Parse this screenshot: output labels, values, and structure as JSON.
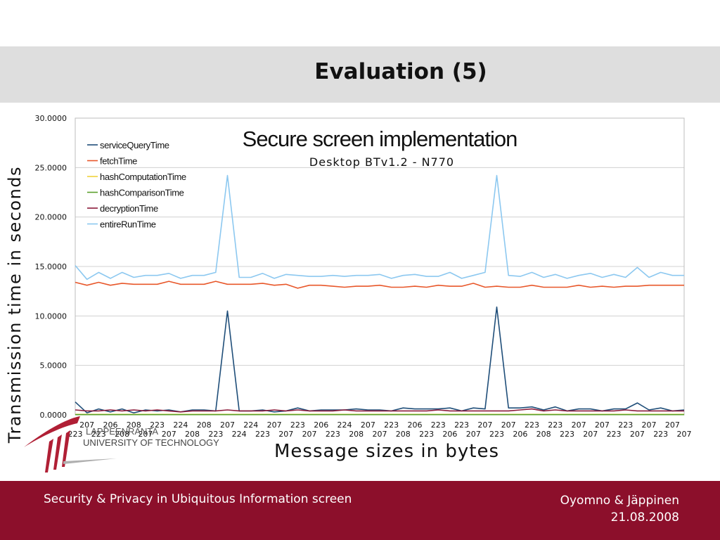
{
  "slide": {
    "title": "Evaluation (5)"
  },
  "footer": {
    "left": "Security & Privacy in Ubiquitous Information screen",
    "authors": "Oyomno & Jäppinen",
    "date": "21.08.2008"
  },
  "logo": {
    "line1": "LAPPEENRANTA",
    "line2": "UNIVERSITY OF TECHNOLOGY"
  },
  "chart_data": {
    "type": "line",
    "title": "Secure screen implementation",
    "subtitle": "Desktop BTv1.2 - N770",
    "xlabel": "Message sizes in bytes",
    "ylabel": "Transmission time in seconds",
    "ylim": [
      0,
      30
    ],
    "yticks": [
      "0.0000",
      "5.0000",
      "10.0000",
      "15.0000",
      "20.0000",
      "25.0000",
      "30.0000"
    ],
    "grid": true,
    "legend_position": "top-left",
    "x": [
      "223",
      "207",
      "223",
      "206",
      "208",
      "208",
      "207",
      "223",
      "207",
      "224",
      "208",
      "208",
      "223",
      "207",
      "224",
      "224",
      "223",
      "207",
      "207",
      "223",
      "207",
      "206",
      "223",
      "224",
      "208",
      "207",
      "207",
      "223",
      "208",
      "206",
      "223",
      "223",
      "206",
      "223",
      "207",
      "207",
      "223",
      "207",
      "206",
      "223",
      "208",
      "223",
      "223",
      "207",
      "207",
      "207",
      "223",
      "223",
      "207",
      "207",
      "223",
      "207",
      "207"
    ],
    "series": [
      {
        "name": "serviceQueryTime",
        "color": "#1f4e79",
        "values": [
          1.3,
          0.2,
          0.6,
          0.3,
          0.6,
          0.2,
          0.5,
          0.4,
          0.5,
          0.3,
          0.5,
          0.5,
          0.4,
          10.5,
          0.4,
          0.4,
          0.5,
          0.3,
          0.4,
          0.7,
          0.4,
          0.5,
          0.5,
          0.5,
          0.6,
          0.5,
          0.5,
          0.4,
          0.7,
          0.6,
          0.6,
          0.6,
          0.7,
          0.4,
          0.7,
          0.6,
          10.9,
          0.7,
          0.7,
          0.8,
          0.5,
          0.8,
          0.4,
          0.6,
          0.6,
          0.4,
          0.6,
          0.6,
          1.2,
          0.5,
          0.7,
          0.4,
          0.5
        ]
      },
      {
        "name": "fetchTime",
        "color": "#e8572a",
        "values": [
          13.4,
          13.1,
          13.4,
          13.1,
          13.3,
          13.2,
          13.2,
          13.2,
          13.5,
          13.2,
          13.2,
          13.2,
          13.5,
          13.2,
          13.2,
          13.2,
          13.3,
          13.1,
          13.2,
          12.8,
          13.1,
          13.1,
          13.0,
          12.9,
          13.0,
          13.0,
          13.1,
          12.9,
          12.9,
          13.0,
          12.9,
          13.1,
          13.0,
          13.0,
          13.3,
          12.9,
          13.0,
          12.9,
          12.9,
          13.1,
          12.9,
          12.9,
          12.9,
          13.1,
          12.9,
          13.0,
          12.9,
          13.0,
          13.0,
          13.1,
          13.1,
          13.1,
          13.1
        ]
      },
      {
        "name": "hashComputationTime",
        "color": "#f0d23c",
        "values": [
          0.05,
          0.05,
          0.05,
          0.05,
          0.05,
          0.05,
          0.05,
          0.05,
          0.05,
          0.05,
          0.05,
          0.05,
          0.05,
          0.05,
          0.05,
          0.05,
          0.05,
          0.05,
          0.05,
          0.05,
          0.05,
          0.05,
          0.05,
          0.05,
          0.05,
          0.05,
          0.05,
          0.05,
          0.05,
          0.05,
          0.05,
          0.05,
          0.05,
          0.05,
          0.05,
          0.05,
          0.05,
          0.05,
          0.05,
          0.05,
          0.05,
          0.05,
          0.05,
          0.05,
          0.05,
          0.05,
          0.05,
          0.05,
          0.05,
          0.05,
          0.05,
          0.05,
          0.05
        ]
      },
      {
        "name": "hashComparisonTime",
        "color": "#5aa02c",
        "values": [
          0.02,
          0.02,
          0.02,
          0.02,
          0.02,
          0.02,
          0.02,
          0.02,
          0.02,
          0.02,
          0.02,
          0.02,
          0.02,
          0.02,
          0.02,
          0.02,
          0.02,
          0.02,
          0.02,
          0.02,
          0.02,
          0.02,
          0.02,
          0.02,
          0.02,
          0.02,
          0.02,
          0.02,
          0.02,
          0.02,
          0.02,
          0.02,
          0.02,
          0.02,
          0.02,
          0.02,
          0.02,
          0.02,
          0.02,
          0.02,
          0.02,
          0.02,
          0.02,
          0.02,
          0.02,
          0.02,
          0.02,
          0.02,
          0.02,
          0.02,
          0.02,
          0.02,
          0.02
        ]
      },
      {
        "name": "decryptionTime",
        "color": "#8b1a3a",
        "values": [
          0.5,
          0.4,
          0.4,
          0.5,
          0.4,
          0.5,
          0.4,
          0.5,
          0.4,
          0.3,
          0.4,
          0.4,
          0.4,
          0.5,
          0.4,
          0.4,
          0.4,
          0.5,
          0.4,
          0.5,
          0.4,
          0.4,
          0.4,
          0.5,
          0.4,
          0.4,
          0.4,
          0.4,
          0.4,
          0.4,
          0.4,
          0.5,
          0.4,
          0.4,
          0.4,
          0.4,
          0.4,
          0.4,
          0.5,
          0.6,
          0.4,
          0.5,
          0.4,
          0.4,
          0.4,
          0.4,
          0.4,
          0.5,
          0.4,
          0.4,
          0.4,
          0.4,
          0.4
        ]
      },
      {
        "name": "entireRunTime",
        "color": "#8cc8f0",
        "values": [
          15.1,
          13.7,
          14.4,
          13.8,
          14.4,
          13.9,
          14.1,
          14.1,
          14.3,
          13.8,
          14.1,
          14.1,
          14.4,
          24.2,
          13.9,
          13.9,
          14.3,
          13.8,
          14.2,
          14.1,
          14.0,
          14.0,
          14.1,
          14.0,
          14.1,
          14.1,
          14.2,
          13.8,
          14.1,
          14.2,
          14.0,
          14.0,
          14.4,
          13.8,
          14.1,
          14.4,
          24.2,
          14.1,
          14.0,
          14.4,
          13.9,
          14.2,
          13.8,
          14.1,
          14.3,
          13.9,
          14.2,
          13.9,
          14.9,
          13.9,
          14.4,
          14.1,
          14.1
        ]
      }
    ]
  }
}
